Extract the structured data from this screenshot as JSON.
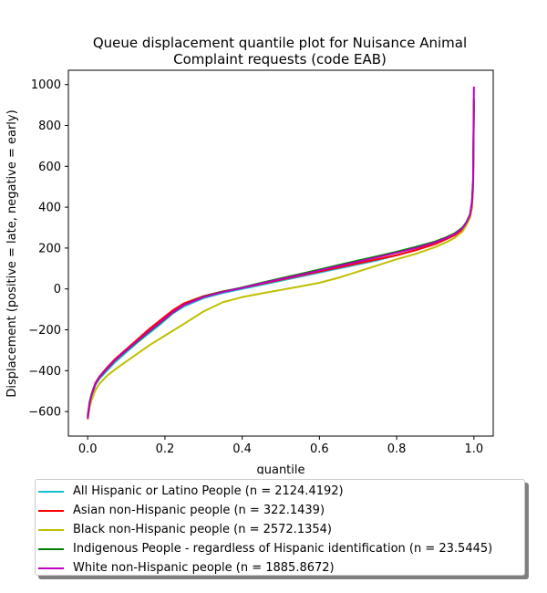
{
  "chart_data": {
    "type": "line",
    "title": "Queue displacement quantile plot for Nuisance Animal\nComplaint  requests (code EAB)",
    "xlabel": "quantile",
    "ylabel": "Displacement (positive = late, negative = early)",
    "xlim": [
      -0.05,
      1.05
    ],
    "ylim": [
      -720,
      1070
    ],
    "xticks": [
      0.0,
      0.2,
      0.4,
      0.6,
      0.8,
      1.0
    ],
    "xtick_labels": [
      "0.0",
      "0.2",
      "0.4",
      "0.6",
      "0.8",
      "1.0"
    ],
    "yticks": [
      -600,
      -400,
      -200,
      0,
      200,
      400,
      600,
      800,
      1000
    ],
    "ytick_labels": [
      "−600",
      "−400",
      "−200",
      "0",
      "200",
      "400",
      "600",
      "800",
      "1000"
    ],
    "grid": false,
    "legend_position": "below",
    "series": [
      {
        "name": "All Hispanic or Latino People (n = 2124.4192)",
        "color": "#17becf",
        "x": [
          0.0,
          0.005,
          0.01,
          0.02,
          0.03,
          0.05,
          0.07,
          0.1,
          0.13,
          0.16,
          0.19,
          0.22,
          0.25,
          0.3,
          0.35,
          0.4,
          0.45,
          0.5,
          0.55,
          0.6,
          0.65,
          0.7,
          0.75,
          0.8,
          0.85,
          0.9,
          0.93,
          0.95,
          0.97,
          0.98,
          0.99,
          0.995,
          0.998,
          1.0
        ],
        "y": [
          -630,
          -560,
          -520,
          -470,
          -440,
          -400,
          -360,
          -310,
          -260,
          -215,
          -170,
          -120,
          -85,
          -45,
          -20,
          0,
          20,
          40,
          60,
          80,
          100,
          120,
          140,
          165,
          190,
          220,
          245,
          265,
          295,
          320,
          360,
          420,
          520,
          920
        ]
      },
      {
        "name": "Asian non-Hispanic people (n = 322.1439)",
        "color": "#ff0000",
        "x": [
          0.0,
          0.005,
          0.01,
          0.02,
          0.03,
          0.05,
          0.07,
          0.1,
          0.13,
          0.16,
          0.19,
          0.22,
          0.25,
          0.3,
          0.35,
          0.4,
          0.45,
          0.5,
          0.55,
          0.6,
          0.65,
          0.7,
          0.75,
          0.8,
          0.85,
          0.9,
          0.93,
          0.95,
          0.97,
          0.98,
          0.99,
          0.995,
          0.998,
          1.0
        ],
        "y": [
          -620,
          -555,
          -515,
          -460,
          -430,
          -385,
          -345,
          -295,
          -245,
          -195,
          -150,
          -105,
          -70,
          -35,
          -12,
          5,
          25,
          45,
          65,
          85,
          105,
          125,
          145,
          165,
          190,
          220,
          245,
          262,
          290,
          315,
          350,
          400,
          500,
          900
        ]
      },
      {
        "name": "Black non-Hispanic people (n = 2572.1354)",
        "color": "#bfbf00",
        "x": [
          0.0,
          0.005,
          0.01,
          0.02,
          0.03,
          0.05,
          0.07,
          0.1,
          0.13,
          0.16,
          0.19,
          0.22,
          0.25,
          0.3,
          0.35,
          0.4,
          0.45,
          0.5,
          0.55,
          0.6,
          0.65,
          0.7,
          0.75,
          0.8,
          0.85,
          0.9,
          0.93,
          0.95,
          0.97,
          0.98,
          0.99,
          0.995,
          0.998,
          1.0
        ],
        "y": [
          -640,
          -580,
          -545,
          -495,
          -465,
          -425,
          -395,
          -355,
          -315,
          -275,
          -240,
          -205,
          -170,
          -110,
          -65,
          -40,
          -22,
          -5,
          12,
          30,
          55,
          85,
          115,
          145,
          172,
          205,
          230,
          250,
          280,
          310,
          350,
          410,
          510,
          910
        ]
      },
      {
        "name": "Indigenous People - regardless of Hispanic identification (n = 23.5445)",
        "color": "#008000",
        "x": [
          0.0,
          0.005,
          0.01,
          0.02,
          0.03,
          0.05,
          0.07,
          0.1,
          0.13,
          0.16,
          0.19,
          0.22,
          0.25,
          0.3,
          0.35,
          0.4,
          0.45,
          0.5,
          0.55,
          0.6,
          0.65,
          0.7,
          0.75,
          0.8,
          0.85,
          0.9,
          0.93,
          0.95,
          0.97,
          0.98,
          0.99,
          0.995,
          0.998,
          1.0
        ],
        "y": [
          -625,
          -555,
          -515,
          -465,
          -435,
          -392,
          -352,
          -302,
          -255,
          -208,
          -163,
          -117,
          -78,
          -38,
          -13,
          7,
          30,
          52,
          73,
          95,
          117,
          139,
          160,
          182,
          206,
          232,
          254,
          272,
          300,
          325,
          365,
          425,
          525,
          930
        ]
      },
      {
        "name": "White non-Hispanic people (n = 1885.8672)",
        "color": "#bf00bf",
        "x": [
          0.0,
          0.005,
          0.01,
          0.02,
          0.03,
          0.05,
          0.07,
          0.1,
          0.13,
          0.16,
          0.19,
          0.22,
          0.25,
          0.3,
          0.35,
          0.4,
          0.45,
          0.5,
          0.55,
          0.6,
          0.65,
          0.7,
          0.75,
          0.8,
          0.85,
          0.9,
          0.93,
          0.95,
          0.97,
          0.98,
          0.99,
          0.995,
          0.998,
          1.0
        ],
        "y": [
          -635,
          -560,
          -520,
          -465,
          -432,
          -390,
          -350,
          -300,
          -252,
          -205,
          -160,
          -115,
          -78,
          -40,
          -15,
          5,
          27,
          48,
          68,
          90,
          112,
          133,
          155,
          177,
          200,
          228,
          250,
          268,
          296,
          322,
          362,
          430,
          540,
          990
        ]
      }
    ]
  }
}
